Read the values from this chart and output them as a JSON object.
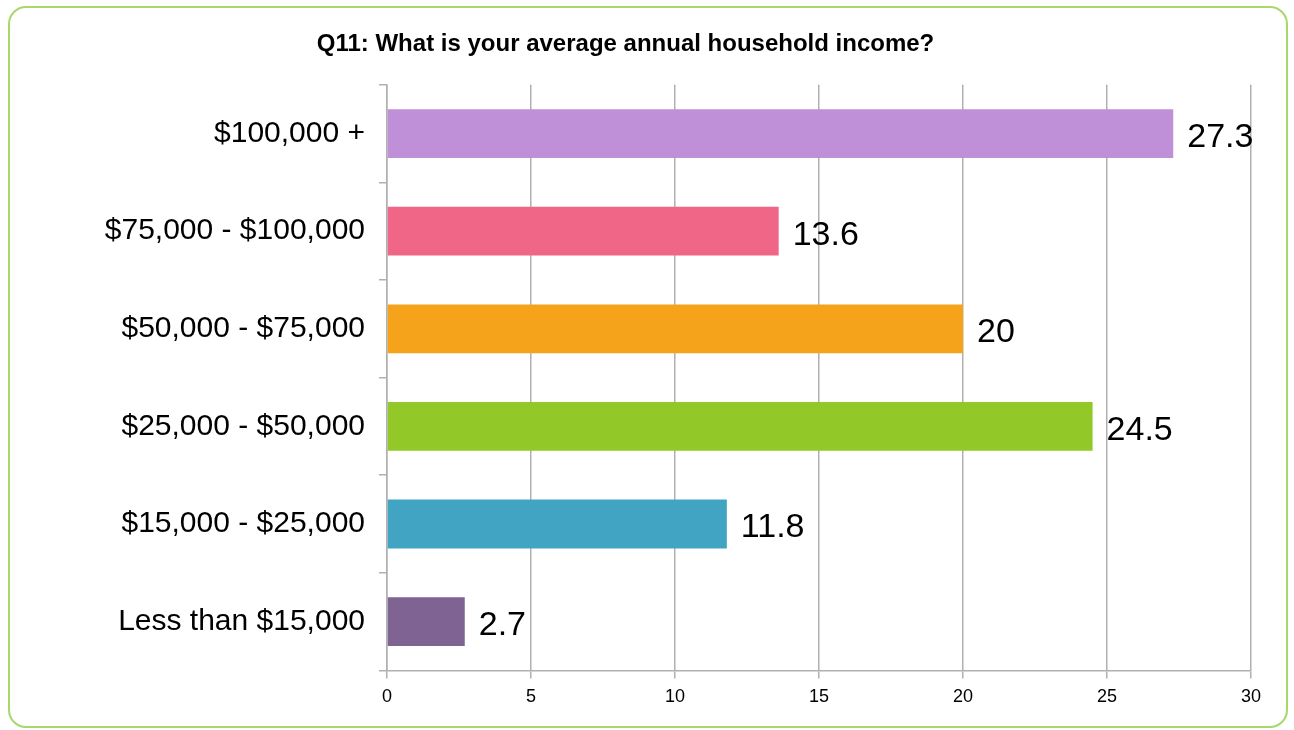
{
  "chart_data": {
    "type": "bar",
    "orientation": "horizontal",
    "title": "Q11: What is your average annual household income?",
    "categories": [
      "$100,000 +",
      "$75,000 - $100,000",
      "$50,000 - $75,000",
      "$25,000 - $50,000",
      "$15,000 - $25,000",
      "Less than $15,000"
    ],
    "values": [
      27.3,
      13.6,
      20,
      24.5,
      11.8,
      2.7
    ],
    "colors": [
      "#bf8fd8",
      "#f06687",
      "#f5a31a",
      "#92c928",
      "#41a4c3",
      "#7e6393"
    ],
    "xlim": [
      0,
      30
    ],
    "xticks": [
      0,
      5,
      10,
      15,
      20,
      25,
      30
    ],
    "grid": "x",
    "legend": false,
    "data_labels": true
  }
}
